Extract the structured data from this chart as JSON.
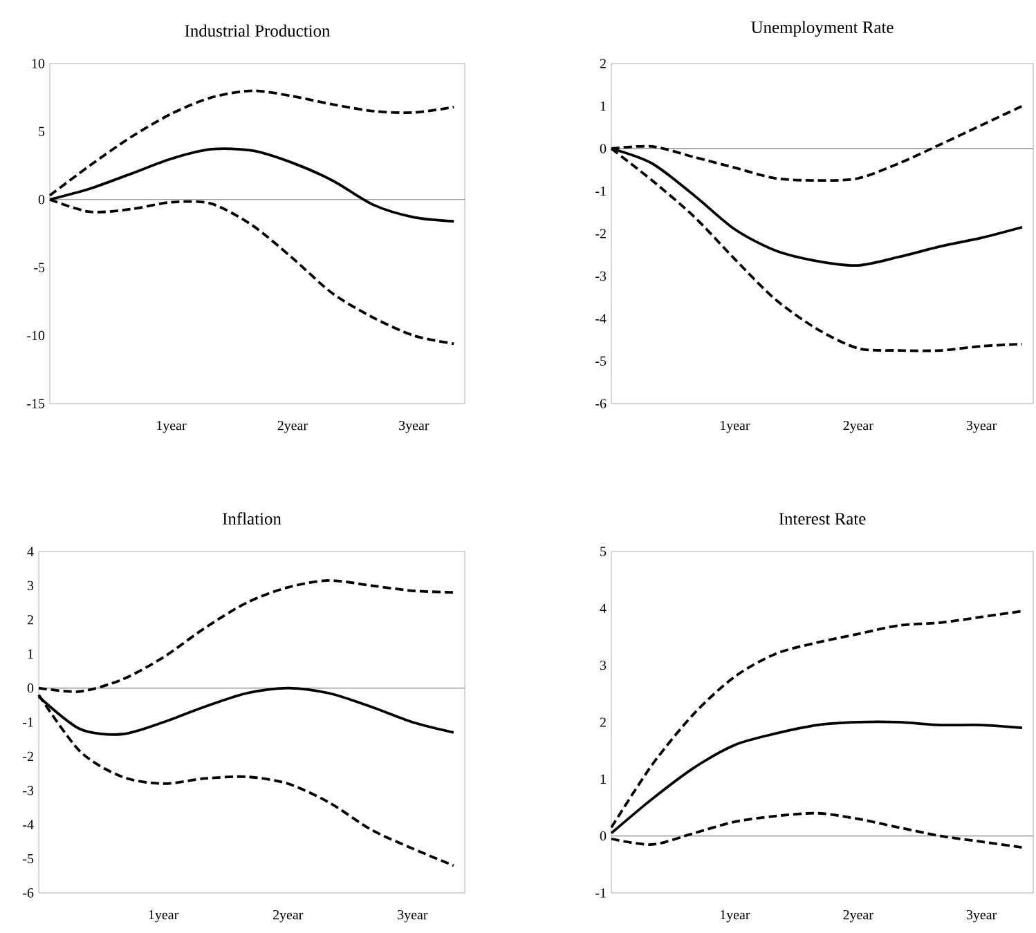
{
  "chart_data": [
    {
      "type": "line",
      "title": "Industrial Production",
      "x": [
        0,
        0.33,
        0.67,
        1,
        1.33,
        1.67,
        2,
        2.33,
        2.67,
        3,
        3.33
      ],
      "xlim": [
        0,
        3.42
      ],
      "ylim": [
        -15,
        10
      ],
      "yticks": [
        -15,
        -10,
        -5,
        0,
        5,
        10
      ],
      "xticks": [
        {
          "value": 1,
          "label": "1year"
        },
        {
          "value": 2,
          "label": "2year"
        },
        {
          "value": 3,
          "label": "3year"
        }
      ],
      "ref_lines": [
        {
          "axis": "y",
          "value": 0,
          "color": "#808080"
        }
      ],
      "series": [
        {
          "color": "#000000",
          "line_style": "dashed",
          "values": [
            0.3,
            2.5,
            4.6,
            6.3,
            7.5,
            8.0,
            7.6,
            7.0,
            6.5,
            6.4,
            6.8
          ]
        },
        {
          "color": "#000000",
          "line_style": "solid",
          "values": [
            0,
            0.8,
            1.9,
            3.0,
            3.7,
            3.6,
            2.7,
            1.4,
            -0.4,
            -1.3,
            -1.6
          ]
        },
        {
          "color": "#000000",
          "line_style": "dashed",
          "values": [
            0,
            -0.9,
            -0.7,
            -0.2,
            -0.3,
            -1.9,
            -4.3,
            -6.9,
            -8.7,
            -10.0,
            -10.6
          ]
        }
      ]
    },
    {
      "type": "line",
      "title": "Unemployment Rate",
      "x": [
        0,
        0.33,
        0.67,
        1,
        1.33,
        1.67,
        2,
        2.33,
        2.67,
        3,
        3.33
      ],
      "xlim": [
        0,
        3.42
      ],
      "ylim": [
        -6,
        2
      ],
      "yticks": [
        -6,
        -5,
        -4,
        -3,
        -2,
        -1,
        0,
        1,
        2
      ],
      "xticks": [
        {
          "value": 1,
          "label": "1year"
        },
        {
          "value": 2,
          "label": "2year"
        },
        {
          "value": 3,
          "label": "3year"
        }
      ],
      "ref_lines": [
        {
          "axis": "y",
          "value": 0,
          "color": "#808080"
        }
      ],
      "series": [
        {
          "color": "#000000",
          "line_style": "dashed",
          "values": [
            0,
            0.05,
            -0.2,
            -0.45,
            -0.7,
            -0.75,
            -0.7,
            -0.35,
            0.1,
            0.55,
            1.0
          ]
        },
        {
          "color": "#000000",
          "line_style": "solid",
          "values": [
            0,
            -0.35,
            -1.1,
            -1.9,
            -2.4,
            -2.65,
            -2.75,
            -2.55,
            -2.3,
            -2.1,
            -1.85
          ]
        },
        {
          "color": "#000000",
          "line_style": "dashed",
          "values": [
            0,
            -0.75,
            -1.6,
            -2.6,
            -3.55,
            -4.25,
            -4.7,
            -4.75,
            -4.75,
            -4.65,
            -4.6
          ]
        }
      ]
    },
    {
      "type": "line",
      "title": "Inflation",
      "x": [
        0,
        0.33,
        0.67,
        1,
        1.33,
        1.67,
        2,
        2.33,
        2.67,
        3,
        3.33
      ],
      "xlim": [
        0,
        3.42
      ],
      "ylim": [
        -6,
        4
      ],
      "yticks": [
        -6,
        -5,
        -4,
        -3,
        -2,
        -1,
        0,
        1,
        2,
        3,
        4
      ],
      "xticks": [
        {
          "value": 1,
          "label": "1year"
        },
        {
          "value": 2,
          "label": "2year"
        },
        {
          "value": 3,
          "label": "3year"
        }
      ],
      "ref_lines": [
        {
          "axis": "y",
          "value": 0,
          "color": "#808080"
        }
      ],
      "series": [
        {
          "color": "#000000",
          "line_style": "dashed",
          "values": [
            0,
            -0.1,
            0.25,
            0.9,
            1.75,
            2.5,
            2.95,
            3.15,
            3.0,
            2.85,
            2.8
          ]
        },
        {
          "color": "#000000",
          "line_style": "solid",
          "values": [
            -0.25,
            -1.2,
            -1.35,
            -1.0,
            -0.55,
            -0.15,
            0.0,
            -0.15,
            -0.55,
            -1.0,
            -1.3
          ]
        },
        {
          "color": "#000000",
          "line_style": "dashed",
          "values": [
            -0.2,
            -1.85,
            -2.6,
            -2.8,
            -2.65,
            -2.6,
            -2.8,
            -3.35,
            -4.15,
            -4.7,
            -5.2
          ]
        }
      ]
    },
    {
      "type": "line",
      "title": "Interest Rate",
      "x": [
        0,
        0.33,
        0.67,
        1,
        1.33,
        1.67,
        2,
        2.33,
        2.67,
        3,
        3.33
      ],
      "xlim": [
        0,
        3.42
      ],
      "ylim": [
        -1,
        5
      ],
      "yticks": [
        -1,
        0,
        1,
        2,
        3,
        4,
        5
      ],
      "xticks": [
        {
          "value": 1,
          "label": "1year"
        },
        {
          "value": 2,
          "label": "2year"
        },
        {
          "value": 3,
          "label": "3year"
        }
      ],
      "ref_lines": [
        {
          "axis": "y",
          "value": 0,
          "color": "#808080"
        }
      ],
      "series": [
        {
          "color": "#000000",
          "line_style": "dashed",
          "values": [
            0.15,
            1.25,
            2.15,
            2.8,
            3.2,
            3.4,
            3.55,
            3.7,
            3.75,
            3.85,
            3.95
          ]
        },
        {
          "color": "#000000",
          "line_style": "solid",
          "values": [
            0.05,
            0.65,
            1.2,
            1.6,
            1.8,
            1.95,
            2.0,
            2.0,
            1.95,
            1.95,
            1.9
          ]
        },
        {
          "color": "#000000",
          "line_style": "dashed",
          "values": [
            -0.05,
            -0.15,
            0.05,
            0.25,
            0.35,
            0.4,
            0.3,
            0.15,
            0.0,
            -0.1,
            -0.2
          ]
        }
      ]
    }
  ]
}
